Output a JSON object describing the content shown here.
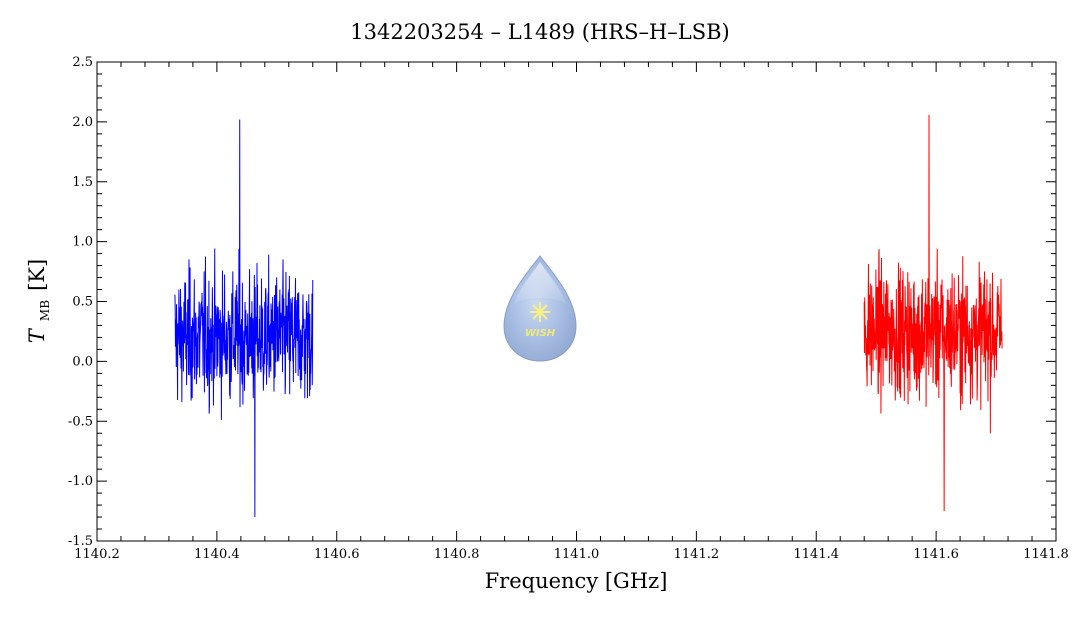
{
  "chart_data": {
    "type": "line",
    "title": "1342203254 – L1489 (HRS–H–LSB)",
    "xlabel": "Frequency [GHz]",
    "ylabel_main": "T",
    "ylabel_sub": "MB",
    "ylabel_unit": "[K]",
    "xlim": [
      1140.2,
      1141.8
    ],
    "ylim": [
      -1.5,
      2.5
    ],
    "x_ticks": [
      1140.2,
      1140.4,
      1140.6,
      1140.8,
      1141.0,
      1141.2,
      1141.4,
      1141.6,
      1141.8
    ],
    "x_tick_labels": [
      "1140.2",
      "1140.4",
      "1140.6",
      "1140.8",
      "1141.0",
      "1141.2",
      "1141.4",
      "1141.6",
      "1141.8"
    ],
    "y_ticks": [
      -1.5,
      -1.0,
      -0.5,
      0.0,
      0.5,
      1.0,
      1.5,
      2.0,
      2.5
    ],
    "y_tick_labels": [
      "-1.5",
      "-1.0",
      "-0.5",
      "0.0",
      "0.5",
      "1.0",
      "1.5",
      "2.0",
      "2.5"
    ],
    "grid": false,
    "series": [
      {
        "color": "#0000ff",
        "x_range": [
          1140.33,
          1140.56
        ],
        "center": 0.2,
        "peak_max": 2.02,
        "peak_min": -1.3
      },
      {
        "color": "#ff0000",
        "x_range": [
          1141.48,
          1141.71
        ],
        "center": 0.25,
        "peak_max": 2.06,
        "peak_min": -1.25
      }
    ]
  },
  "logo": {
    "text": "WISH",
    "icon": "wish-droplet-logo"
  }
}
